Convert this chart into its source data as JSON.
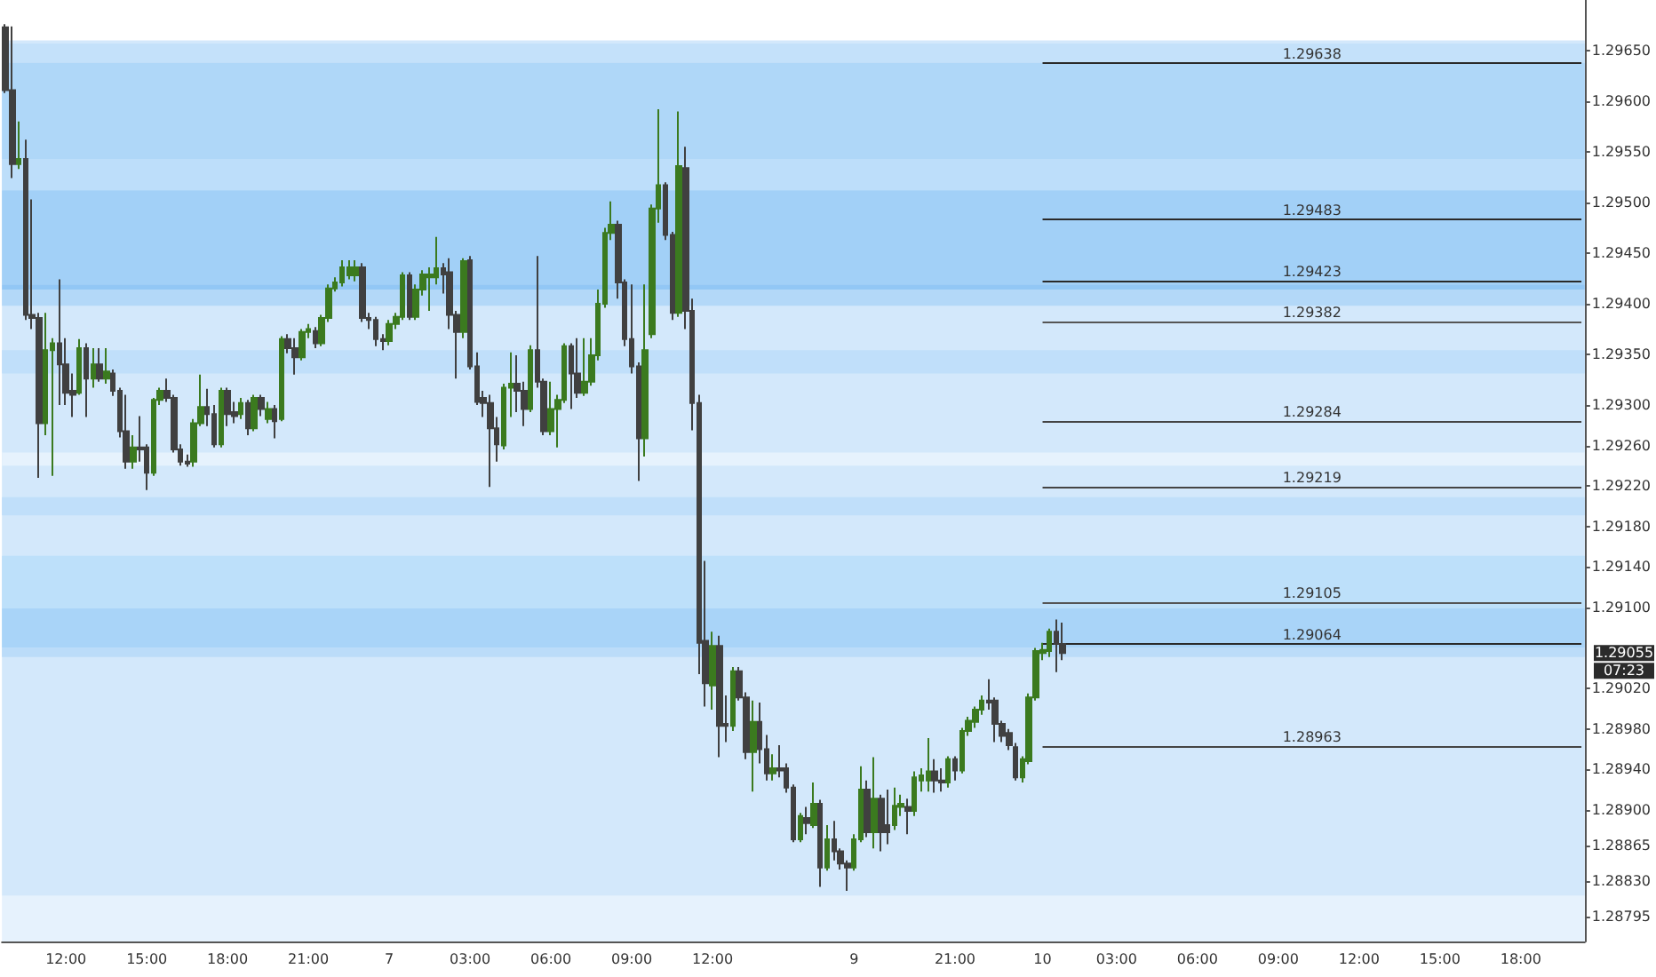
{
  "chart_data": {
    "type": "candlestick",
    "categories": [
      null,
      null,
      null,
      null,
      null,
      null,
      null,
      null,
      null,
      "12:00",
      null,
      null,
      null,
      null,
      null,
      null,
      null,
      null,
      null,
      null,
      null,
      "15:00",
      null,
      null,
      null,
      null,
      null,
      null,
      null,
      null,
      null,
      null,
      null,
      "18:00",
      null,
      null,
      null,
      null,
      null,
      null,
      null,
      null,
      null,
      null,
      null,
      "21:00",
      null,
      null,
      null,
      null,
      null,
      null,
      null,
      null,
      null,
      null,
      null,
      "7",
      null,
      null,
      null,
      null,
      null,
      null,
      null,
      null,
      null,
      null,
      null,
      "03:00",
      null,
      null,
      null,
      null,
      null,
      null,
      null,
      null,
      null,
      null,
      null,
      "06:00",
      null,
      null,
      null,
      null,
      null,
      null,
      null,
      null,
      null,
      null,
      null,
      "09:00",
      null,
      null,
      null,
      null,
      null,
      null,
      null,
      null,
      null,
      null,
      null,
      "12:00",
      null,
      null,
      null,
      null,
      null,
      null,
      null,
      null,
      null,
      null,
      null,
      null,
      null,
      null,
      null,
      null,
      null,
      null,
      null,
      null,
      "9",
      null,
      null,
      null,
      null,
      null,
      null,
      null,
      null,
      null,
      null,
      null,
      null,
      null,
      null,
      "21:00",
      null,
      null,
      null,
      null,
      null,
      null,
      null,
      null,
      null,
      null,
      null,
      null,
      "10",
      null,
      null,
      null,
      null,
      null,
      null,
      null,
      null,
      null,
      null,
      "03:00",
      null,
      null,
      null,
      null,
      null,
      null,
      null,
      null,
      null,
      null,
      null,
      "06:00",
      null,
      null,
      null,
      null,
      null,
      null,
      null,
      null,
      null,
      null,
      null,
      "09:00",
      null,
      null,
      null,
      null,
      null,
      null,
      null,
      null,
      null,
      null,
      null,
      "12:00",
      null,
      null,
      null,
      null,
      null,
      null,
      null,
      null,
      null,
      null,
      null,
      "15:00",
      null,
      null,
      null,
      null,
      null,
      null,
      null,
      null,
      null,
      null,
      null,
      "18:00",
      null,
      null,
      null,
      null,
      null,
      null,
      null,
      null,
      null
    ],
    "colors": [
      "#404040",
      "#404040",
      "#3b7a1f",
      "#404040",
      "#404040",
      "#404040",
      "#3b7a1f",
      "#3b7a1f",
      "#404040",
      "#404040",
      "#404040",
      "#3b7a1f",
      "#404040",
      "#3b7a1f",
      "#404040",
      "#3b7a1f",
      "#404040",
      "#404040",
      "#404040",
      "#3b7a1f",
      "#404040",
      "#404040",
      "#3b7a1f",
      "#3b7a1f",
      "#404040",
      "#404040",
      "#404040",
      "#404040",
      "#3b7a1f",
      "#3b7a1f",
      "#404040",
      "#404040",
      "#3b7a1f",
      "#404040",
      "#404040",
      "#3b7a1f",
      "#404040",
      "#3b7a1f",
      "#404040",
      "#3b7a1f",
      "#404040",
      "#3b7a1f",
      "#404040",
      "#404040",
      "#3b7a1f",
      "#3b7a1f",
      "#404040",
      "#3b7a1f",
      "#3b7a1f",
      "#3b7a1f",
      "#3b7a1f",
      "#3b7a1f",
      "#3b7a1f",
      "#404040",
      "#404040",
      "#404040",
      "#404040",
      "#3b7a1f",
      "#3b7a1f",
      "#3b7a1f",
      "#404040",
      "#3b7a1f",
      "#3b7a1f",
      "#3b7a1f",
      "#3b7a1f",
      "#404040",
      "#404040",
      "#404040",
      "#3b7a1f",
      "#404040",
      "#404040",
      "#404040",
      "#404040",
      "#404040",
      "#3b7a1f",
      "#3b7a1f",
      "#404040",
      "#404040",
      "#3b7a1f",
      "#404040",
      "#404040",
      "#3b7a1f",
      "#3b7a1f",
      "#3b7a1f",
      "#404040",
      "#404040",
      "#3b7a1f",
      "#3b7a1f",
      "#3b7a1f",
      "#3b7a1f",
      "#3b7a1f",
      "#404040",
      "#404040",
      "#404040",
      "#404040",
      "#3b7a1f",
      "#3b7a1f",
      "#3b7a1f",
      "#404040",
      "#404040",
      "#3b7a1f",
      "#404040",
      "#404040",
      "#404040",
      "#404040",
      "#3b7a1f",
      "#404040",
      "#404040",
      "#3b7a1f",
      "#404040",
      "#404040",
      "#3b7a1f",
      "#404040",
      "#404040",
      "#3b7a1f",
      "#404040",
      "#404040",
      "#404040",
      "#3b7a1f",
      "#404040",
      "#3b7a1f",
      "#404040",
      "#3b7a1f",
      "#404040",
      "#404040",
      "#404040",
      "#3b7a1f",
      "#3b7a1f",
      "#404040",
      "#3b7a1f",
      "#404040",
      "#404040",
      "#3b7a1f",
      "#3b7a1f",
      "#404040",
      "#3b7a1f",
      "#3b7a1f",
      "#3b7a1f",
      "#404040",
      "#404040",
      "#3b7a1f",
      "#404040",
      "#3b7a1f",
      "#3b7a1f",
      "#3b7a1f",
      "#3b7a1f",
      "#404040",
      "#404040",
      "#404040",
      "#404040",
      "#404040",
      "#3b7a1f",
      "#3b7a1f",
      "#3b7a1f",
      "#3b7a1f",
      "#3b7a1f",
      "#404040",
      "#404040",
      null,
      null,
      null,
      null,
      null,
      null,
      null,
      null,
      null,
      null,
      null,
      null,
      null,
      null,
      null,
      null,
      null,
      null,
      null,
      null,
      null,
      null,
      null,
      null,
      null,
      null,
      null,
      null,
      null,
      null,
      null,
      null,
      null,
      null,
      null,
      null,
      null,
      null,
      null,
      null,
      null,
      null,
      null,
      null,
      null,
      null,
      null,
      null,
      null,
      null,
      null,
      null,
      null,
      null,
      null,
      null,
      null,
      null,
      null,
      null,
      null,
      null,
      null,
      null,
      null,
      null,
      null,
      null,
      null,
      null,
      null,
      null,
      null,
      null,
      null,
      null,
      null
    ],
    "ohlc": [
      [
        1.29673,
        1.29676,
        1.29608,
        1.29611
      ],
      [
        1.29611,
        1.29674,
        1.29524,
        1.29538
      ],
      [
        1.29538,
        1.2958,
        1.29533,
        1.29543
      ],
      [
        1.29543,
        1.29562,
        1.29384,
        1.29389
      ],
      [
        1.29389,
        1.29503,
        1.29375,
        1.29386
      ],
      [
        1.29386,
        1.29391,
        1.29228,
        1.29282
      ],
      [
        1.29282,
        1.29391,
        1.2927,
        1.29354
      ],
      [
        1.29354,
        1.29366,
        1.2923,
        1.29361
      ],
      [
        1.29361,
        1.29424,
        1.293,
        1.2934
      ],
      [
        1.2934,
        1.29366,
        1.293,
        1.29312
      ],
      [
        1.29314,
        1.29331,
        1.29288,
        1.2931
      ],
      [
        1.29312,
        1.29365,
        1.2931,
        1.29356
      ],
      [
        1.29356,
        1.29361,
        1.29288,
        1.29326
      ],
      [
        1.29326,
        1.29356,
        1.29317,
        1.2934
      ],
      [
        1.2934,
        1.29356,
        1.29323,
        1.29326
      ],
      [
        1.29326,
        1.29356,
        1.29321,
        1.29333
      ],
      [
        1.29331,
        1.29335,
        1.29309,
        1.29314
      ],
      [
        1.29314,
        1.29317,
        1.29268,
        1.29274
      ],
      [
        1.29274,
        1.2931,
        1.29237,
        1.29244
      ],
      [
        1.29244,
        1.2927,
        1.29237,
        1.29258
      ],
      [
        1.29258,
        1.29289,
        1.29244,
        1.29256
      ],
      [
        1.29258,
        1.29261,
        1.29216,
        1.29233
      ],
      [
        1.29233,
        1.29307,
        1.2923,
        1.29305
      ],
      [
        1.29305,
        1.29317,
        1.293,
        1.29314
      ],
      [
        1.29314,
        1.29326,
        1.29303,
        1.29307
      ],
      [
        1.29307,
        1.2931,
        1.29253,
        1.29256
      ],
      [
        1.29256,
        1.29261,
        1.2924,
        1.29244
      ],
      [
        1.29244,
        1.29251,
        1.29239,
        1.29242
      ],
      [
        1.29244,
        1.29286,
        1.29239,
        1.29282
      ],
      [
        1.29282,
        1.2933,
        1.29279,
        1.29298
      ],
      [
        1.29298,
        1.29316,
        1.29279,
        1.29291
      ],
      [
        1.29291,
        1.293,
        1.29258,
        1.29261
      ],
      [
        1.29261,
        1.29317,
        1.29258,
        1.29314
      ],
      [
        1.29314,
        1.29317,
        1.29279,
        1.29291
      ],
      [
        1.29293,
        1.29303,
        1.29282,
        1.29289
      ],
      [
        1.29291,
        1.29307,
        1.29286,
        1.29302
      ],
      [
        1.29302,
        1.29305,
        1.2927,
        1.29277
      ],
      [
        1.29277,
        1.2931,
        1.29274,
        1.29307
      ],
      [
        1.29307,
        1.2931,
        1.29289,
        1.29296
      ],
      [
        1.29286,
        1.29303,
        1.29282,
        1.29296
      ],
      [
        1.29296,
        1.293,
        1.29267,
        1.29284
      ],
      [
        1.29286,
        1.29368,
        1.29284,
        1.29365
      ],
      [
        1.29365,
        1.2937,
        1.29351,
        1.29356
      ],
      [
        1.29356,
        1.29366,
        1.2933,
        1.29347
      ],
      [
        1.29347,
        1.29375,
        1.29344,
        1.29372
      ],
      [
        1.29372,
        1.2938,
        1.29366,
        1.29375
      ],
      [
        1.29373,
        1.29377,
        1.29356,
        1.29361
      ],
      [
        1.29361,
        1.29389,
        1.29358,
        1.29386
      ],
      [
        1.29386,
        1.29419,
        1.29382,
        1.29415
      ],
      [
        1.29415,
        1.29426,
        1.29412,
        1.29421
      ],
      [
        1.29421,
        1.29443,
        1.29417,
        1.29436
      ],
      [
        1.29428,
        1.29443,
        1.29424,
        1.29436
      ],
      [
        1.29428,
        1.29443,
        1.29422,
        1.29436
      ],
      [
        1.29436,
        1.2944,
        1.29382,
        1.29386
      ],
      [
        1.29386,
        1.29391,
        1.29375,
        1.29384
      ],
      [
        1.29384,
        1.29387,
        1.29358,
        1.29365
      ],
      [
        1.29365,
        1.2937,
        1.29354,
        1.29363
      ],
      [
        1.29363,
        1.29384,
        1.29359,
        1.2938
      ],
      [
        1.2938,
        1.29391,
        1.29375,
        1.29387
      ],
      [
        1.29387,
        1.29431,
        1.29384,
        1.29428
      ],
      [
        1.29428,
        1.29431,
        1.29384,
        1.29387
      ],
      [
        1.29387,
        1.29419,
        1.29384,
        1.29414
      ],
      [
        1.29414,
        1.29433,
        1.29408,
        1.29429
      ],
      [
        1.29426,
        1.29436,
        1.29393,
        1.29429
      ],
      [
        1.29426,
        1.29466,
        1.29419,
        1.29435
      ],
      [
        1.29435,
        1.2944,
        1.2941,
        1.29429
      ],
      [
        1.29431,
        1.29445,
        1.29375,
        1.29389
      ],
      [
        1.29389,
        1.29393,
        1.29326,
        1.29372
      ],
      [
        1.29372,
        1.29445,
        1.29366,
        1.29442
      ],
      [
        1.29443,
        1.29447,
        1.29335,
        1.29338
      ],
      [
        1.29338,
        1.29352,
        1.293,
        1.29303
      ],
      [
        1.29307,
        1.29314,
        1.29288,
        1.29302
      ],
      [
        1.29302,
        1.2931,
        1.29219,
        1.29277
      ],
      [
        1.29277,
        1.29288,
        1.29244,
        1.29261
      ],
      [
        1.2926,
        1.29321,
        1.29256,
        1.29317
      ],
      [
        1.29317,
        1.29352,
        1.29288,
        1.29321
      ],
      [
        1.29321,
        1.29349,
        1.29293,
        1.29314
      ],
      [
        1.29314,
        1.29323,
        1.29279,
        1.29296
      ],
      [
        1.29296,
        1.29359,
        1.29293,
        1.29354
      ],
      [
        1.29354,
        1.29447,
        1.29317,
        1.29323
      ],
      [
        1.29323,
        1.29326,
        1.2927,
        1.29274
      ],
      [
        1.29274,
        1.29323,
        1.2927,
        1.29296
      ],
      [
        1.29296,
        1.2931,
        1.29258,
        1.29305
      ],
      [
        1.29305,
        1.29361,
        1.29302,
        1.29358
      ],
      [
        1.29358,
        1.29361,
        1.29296,
        1.29331
      ],
      [
        1.29331,
        1.29366,
        1.29307,
        1.29312
      ],
      [
        1.29312,
        1.29366,
        1.29309,
        1.29323
      ],
      [
        1.29323,
        1.29366,
        1.29319,
        1.29349
      ],
      [
        1.29349,
        1.29414,
        1.29344,
        1.294
      ],
      [
        1.294,
        1.29475,
        1.29396,
        1.2947
      ],
      [
        1.2947,
        1.29501,
        1.29463,
        1.29478
      ],
      [
        1.29478,
        1.29482,
        1.29405,
        1.29421
      ],
      [
        1.29421,
        1.29424,
        1.29358,
        1.29365
      ],
      [
        1.29365,
        1.29419,
        1.29331,
        1.29338
      ],
      [
        1.29338,
        1.29342,
        1.29225,
        1.29267
      ],
      [
        1.29267,
        1.29419,
        1.29249,
        1.29354
      ],
      [
        1.2937,
        1.29498,
        1.29366,
        1.29494
      ],
      [
        1.29494,
        1.29592,
        1.2948,
        1.29517
      ],
      [
        1.29517,
        1.2952,
        1.29463,
        1.29468
      ],
      [
        1.29468,
        1.29471,
        1.29384,
        1.29391
      ],
      [
        1.29391,
        1.2959,
        1.29387,
        1.29536
      ],
      [
        1.29534,
        1.29555,
        1.29375,
        1.29393
      ],
      [
        1.29393,
        1.29405,
        1.29275,
        1.29302
      ],
      [
        1.29302,
        1.2931,
        1.29034,
        1.29065
      ],
      [
        1.29067,
        1.29146,
        1.29002,
        1.29025
      ],
      [
        1.29023,
        1.29076,
        1.28999,
        1.29062
      ],
      [
        1.29062,
        1.29072,
        1.28952,
        1.28983
      ],
      [
        1.28985,
        1.29013,
        1.28967,
        1.28983
      ],
      [
        1.28983,
        1.29041,
        1.28978,
        1.29037
      ],
      [
        1.29037,
        1.29041,
        1.29008,
        1.29011
      ],
      [
        1.29011,
        1.29016,
        1.2895,
        1.28957
      ],
      [
        1.28957,
        1.29008,
        1.28918,
        1.28987
      ],
      [
        1.28987,
        1.29006,
        1.28946,
        1.2896
      ],
      [
        1.2896,
        1.28974,
        1.28929,
        1.28936
      ],
      [
        1.28936,
        1.28955,
        1.28929,
        1.28941
      ],
      [
        1.28941,
        1.28964,
        1.28932,
        1.28939
      ],
      [
        1.28941,
        1.28946,
        1.28917,
        1.28922
      ],
      [
        1.28922,
        1.28925,
        1.28868,
        1.28871
      ],
      [
        1.28871,
        1.28897,
        1.28868,
        1.28894
      ],
      [
        1.28892,
        1.28903,
        1.28876,
        1.28887
      ],
      [
        1.28885,
        1.28927,
        1.28882,
        1.28906
      ],
      [
        1.28906,
        1.2891,
        1.28824,
        1.28843
      ],
      [
        1.28843,
        1.28885,
        1.2884,
        1.28871
      ],
      [
        1.28871,
        1.28889,
        1.2885,
        1.28859
      ],
      [
        1.28859,
        1.28862,
        1.28841,
        1.28847
      ],
      [
        1.28847,
        1.2885,
        1.2882,
        1.28843
      ],
      [
        1.28843,
        1.28876,
        1.2884,
        1.28871
      ],
      [
        1.28871,
        1.28943,
        1.28868,
        1.2892
      ],
      [
        1.2892,
        1.28929,
        1.28873,
        1.28878
      ],
      [
        1.28878,
        1.28952,
        1.28862,
        1.28911
      ],
      [
        1.28911,
        1.28915,
        1.28859,
        1.28878
      ],
      [
        1.28885,
        1.2892,
        1.28866,
        1.28878
      ],
      [
        1.28885,
        1.28922,
        1.2888,
        1.28904
      ],
      [
        1.28903,
        1.28915,
        1.28894,
        1.28906
      ],
      [
        1.28903,
        1.28911,
        1.28876,
        1.28899
      ],
      [
        1.28899,
        1.28938,
        1.28894,
        1.28932
      ],
      [
        1.28929,
        1.28941,
        1.28918,
        1.28934
      ],
      [
        1.28929,
        1.28971,
        1.28918,
        1.28938
      ],
      [
        1.28938,
        1.2895,
        1.28917,
        1.28929
      ],
      [
        1.28929,
        1.28941,
        1.28918,
        1.28927
      ],
      [
        1.28927,
        1.28953,
        1.28922,
        1.2895
      ],
      [
        1.2895,
        1.28953,
        1.28929,
        1.28939
      ],
      [
        1.28939,
        1.28981,
        1.28936,
        1.28978
      ],
      [
        1.28978,
        1.28992,
        1.28973,
        1.28988
      ],
      [
        1.28987,
        1.29002,
        1.28981,
        1.28999
      ],
      [
        1.28999,
        1.29013,
        1.28994,
        1.29008
      ],
      [
        1.29008,
        1.29029,
        1.28999,
        1.29006
      ],
      [
        1.29008,
        1.29011,
        1.28967,
        1.28985
      ],
      [
        1.28985,
        1.28988,
        1.28967,
        1.28973
      ],
      [
        1.28976,
        1.2898,
        1.28959,
        1.28964
      ],
      [
        1.28962,
        1.28966,
        1.28929,
        1.28932
      ],
      [
        1.28932,
        1.28953,
        1.28927,
        1.2895
      ],
      [
        1.28948,
        1.29015,
        1.28945,
        1.29011
      ],
      [
        1.29011,
        1.2906,
        1.29008,
        1.29057
      ],
      [
        1.29055,
        1.29065,
        1.29048,
        1.29058
      ],
      [
        1.29057,
        1.29079,
        1.29051,
        1.29076
      ],
      [
        1.29076,
        1.29088,
        1.29036,
        1.29064
      ],
      [
        1.29064,
        1.29085,
        1.29048,
        1.29055
      ],
      null,
      null,
      null,
      null,
      null,
      null,
      null,
      null,
      null,
      null,
      null,
      null,
      null,
      null,
      null,
      null,
      null,
      null,
      null,
      null,
      null,
      null,
      null,
      null,
      null,
      null,
      null,
      null,
      null,
      null,
      null,
      null,
      null,
      null,
      null,
      null,
      null,
      null,
      null,
      null,
      null,
      null,
      null,
      null,
      null,
      null,
      null,
      null,
      null,
      null,
      null,
      null,
      null,
      null,
      null,
      null,
      null,
      null,
      null,
      null,
      null,
      null,
      null,
      null,
      null,
      null,
      null,
      null,
      null,
      null,
      null,
      null,
      null,
      null,
      null,
      null,
      null
    ],
    "ylim": [
      1.2877,
      1.297
    ],
    "yticks": [
      {
        "value": 1.2965,
        "label": "1.29650"
      },
      {
        "value": 1.296,
        "label": "1.29600"
      },
      {
        "value": 1.2955,
        "label": "1.29550"
      },
      {
        "value": 1.295,
        "label": "1.29500"
      },
      {
        "value": 1.2945,
        "label": "1.29450"
      },
      {
        "value": 1.294,
        "label": "1.29400"
      },
      {
        "value": 1.2935,
        "label": "1.29350"
      },
      {
        "value": 1.293,
        "label": "1.29300"
      },
      {
        "value": 1.2926,
        "label": "1.29260"
      },
      {
        "value": 1.2922,
        "label": "1.29220"
      },
      {
        "value": 1.2918,
        "label": "1.29180"
      },
      {
        "value": 1.2914,
        "label": "1.29140"
      },
      {
        "value": 1.291,
        "label": "1.29100"
      },
      {
        "value": 1.2902,
        "label": "1.29020"
      },
      {
        "value": 1.2898,
        "label": "1.28980"
      },
      {
        "value": 1.2894,
        "label": "1.28940"
      },
      {
        "value": 1.289,
        "label": "1.28900"
      },
      1.28865,
      {
        "value": 1.2883,
        "label": "1.28830"
      },
      1.28795
    ],
    "bands": [
      {
        "axis": "y",
        "from": 1.28815,
        "to": 1.2966,
        "color": "#d3e8fb"
      },
      {
        "axis": "y",
        "from": 1.2877,
        "to": 1.28815,
        "color": "#e6f2fd"
      },
      {
        "axis": "y",
        "from": 1.29638,
        "to": 1.29657,
        "color": "#c4e1fa"
      },
      {
        "axis": "y",
        "from": 1.29543,
        "to": 1.29638,
        "color": "#afd7f8"
      },
      {
        "axis": "y",
        "from": 1.29512,
        "to": 1.29543,
        "color": "#bddefa"
      },
      {
        "axis": "y",
        "from": 1.29419,
        "to": 1.29512,
        "color": "#a2d0f7"
      },
      {
        "axis": "y",
        "from": 1.29414,
        "to": 1.29419,
        "color": "#92c7f5"
      },
      {
        "axis": "y",
        "from": 1.29398,
        "to": 1.29414,
        "color": "#b3d8f8"
      },
      {
        "axis": "y",
        "from": 1.29331,
        "to": 1.29354,
        "color": "#c0dffa"
      },
      {
        "axis": "y",
        "from": 1.2924,
        "to": 1.29253,
        "color": "#e6f2fd"
      },
      {
        "axis": "y",
        "from": 1.29191,
        "to": 1.29209,
        "color": "#c0dffa"
      },
      {
        "axis": "y",
        "from": 1.29099,
        "to": 1.29151,
        "color": "#bde0fa"
      },
      {
        "axis": "y",
        "from": 1.2906,
        "to": 1.29099,
        "color": "#a9d4f8"
      },
      {
        "axis": "y",
        "from": 1.29051,
        "to": 1.2906,
        "color": "#bbdcf9"
      }
    ],
    "ref_lines": [
      {
        "axis": "y",
        "value": 1.29638,
        "label": "1.29638",
        "color": "#2a2a2a"
      },
      {
        "axis": "y",
        "value": 1.29483,
        "label": "1.29483",
        "color": "#2a2a2a"
      },
      {
        "axis": "y",
        "value": 1.29423,
        "label": "1.29423",
        "color": "#2a2a2a"
      },
      {
        "axis": "y",
        "value": 1.29382,
        "label": "1.29382",
        "color": "#555555"
      },
      {
        "axis": "y",
        "value": 1.29284,
        "label": "1.29284",
        "color": "#444444"
      },
      {
        "axis": "y",
        "value": 1.29219,
        "label": "1.29219",
        "color": "#444444"
      },
      {
        "axis": "y",
        "value": 1.29105,
        "label": "1.29105",
        "color": "#555555"
      },
      {
        "axis": "y",
        "value": 1.29064,
        "label": "1.29064",
        "color": "#2a2a2a"
      },
      {
        "axis": "y",
        "value": 1.28963,
        "label": "1.28963",
        "color": "#444444"
      }
    ],
    "annotations": [
      "1.29055",
      "07:23"
    ]
  }
}
